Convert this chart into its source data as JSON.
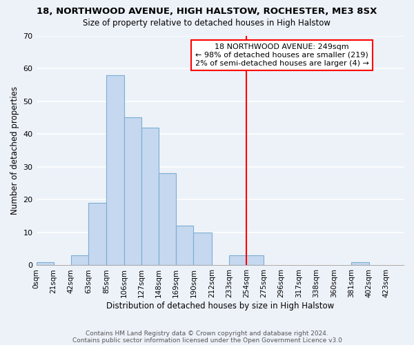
{
  "title1": "18, NORTHWOOD AVENUE, HIGH HALSTOW, ROCHESTER, ME3 8SX",
  "title2": "Size of property relative to detached houses in High Halstow",
  "xlabel": "Distribution of detached houses by size in High Halstow",
  "ylabel": "Number of detached properties",
  "footer_line1": "Contains HM Land Registry data © Crown copyright and database right 2024.",
  "footer_line2": "Contains public sector information licensed under the Open Government Licence v3.0",
  "bin_labels": [
    "0sqm",
    "21sqm",
    "42sqm",
    "63sqm",
    "85sqm",
    "106sqm",
    "127sqm",
    "148sqm",
    "169sqm",
    "190sqm",
    "212sqm",
    "233sqm",
    "254sqm",
    "275sqm",
    "296sqm",
    "317sqm",
    "338sqm",
    "360sqm",
    "381sqm",
    "402sqm",
    "423sqm"
  ],
  "bar_values": [
    1,
    0,
    3,
    19,
    58,
    45,
    42,
    28,
    12,
    10,
    0,
    3,
    3,
    0,
    0,
    0,
    0,
    0,
    1,
    0,
    0
  ],
  "bar_color": "#c5d8ef",
  "bar_edgecolor": "#7aadd4",
  "bg_color": "#edf2f9",
  "grid_color": "#ffffff",
  "property_line_x": 249,
  "property_line_label": "18 NORTHWOOD AVENUE: 249sqm",
  "annotation_line1": "← 98% of detached houses are smaller (219)",
  "annotation_line2": "2% of semi-detached houses are larger (4) →",
  "ylim": [
    0,
    70
  ],
  "bin_width": 21,
  "bin_starts": [
    0,
    21,
    42,
    63,
    85,
    106,
    127,
    148,
    169,
    190,
    212,
    233,
    254,
    275,
    296,
    317,
    338,
    360,
    381,
    402,
    423
  ],
  "bin_edges": [
    0,
    21,
    42,
    63,
    85,
    106,
    127,
    148,
    169,
    190,
    212,
    233,
    254,
    275,
    296,
    317,
    338,
    360,
    381,
    402,
    423,
    444
  ]
}
